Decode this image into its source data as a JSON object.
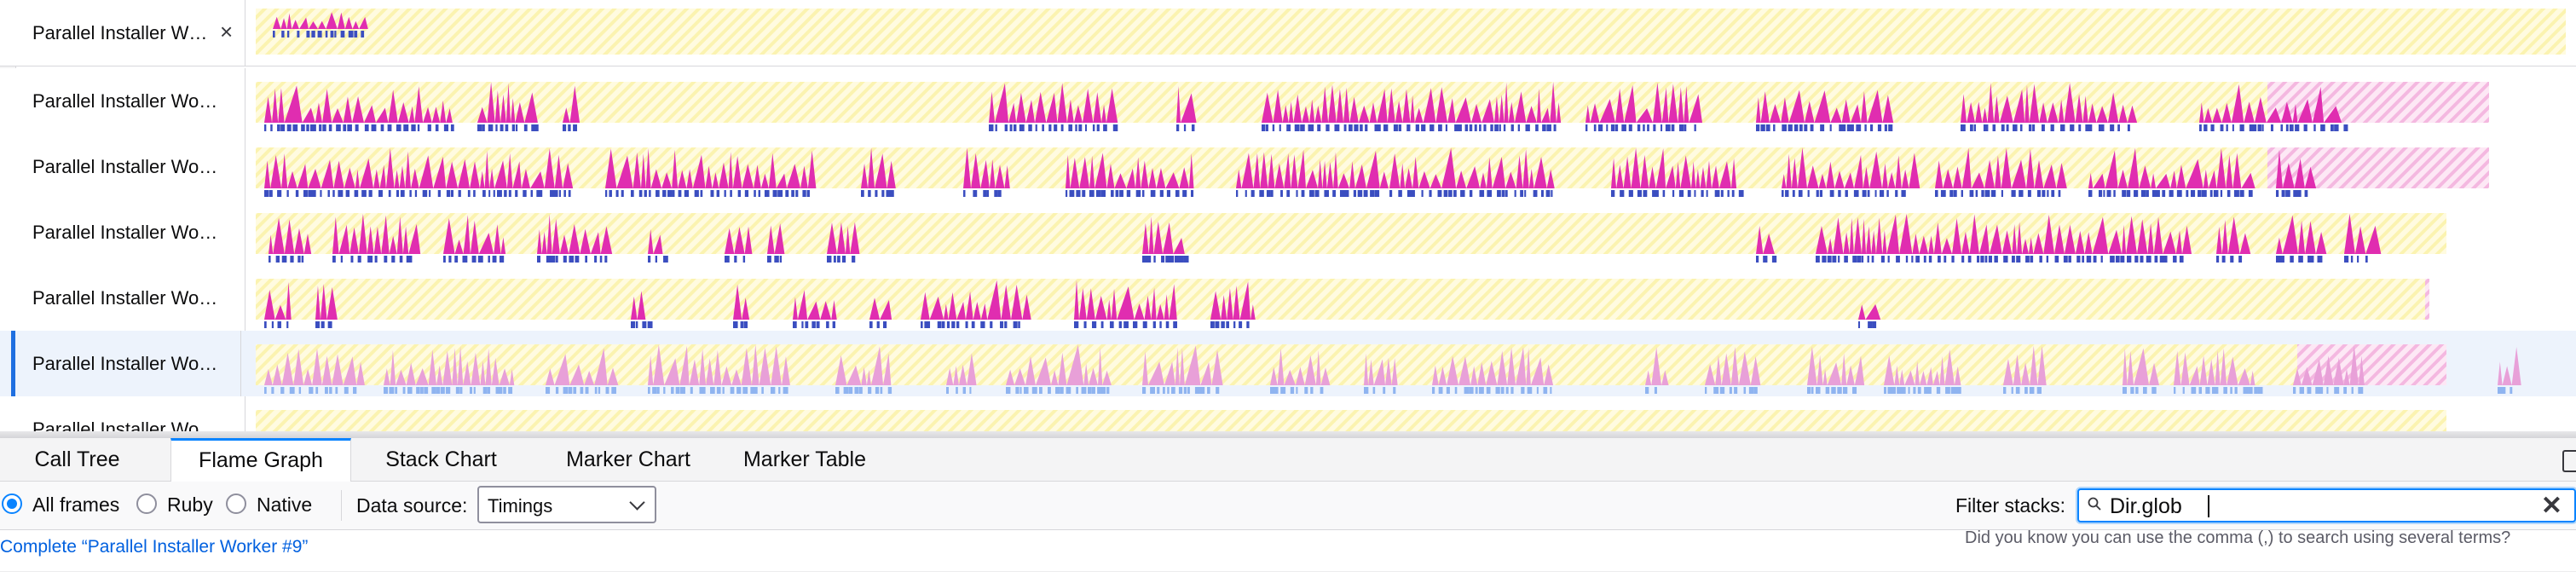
{
  "tracks": [
    {
      "label": "Parallel Installer W…",
      "close_icon": "×",
      "selected": false
    },
    {
      "label": "Parallel Installer Wo…",
      "selected": false
    },
    {
      "label": "Parallel Installer Wo…",
      "selected": false
    },
    {
      "label": "Parallel Installer Wo…",
      "selected": false
    },
    {
      "label": "Parallel Installer Wo…",
      "selected": false
    },
    {
      "label": "Parallel Installer Wo…",
      "selected": true
    },
    {
      "label": "Parallel Installer Wo…",
      "selected": false
    }
  ],
  "tabs": [
    {
      "label": "Call Tree",
      "active": false
    },
    {
      "label": "Flame Graph",
      "active": true
    },
    {
      "label": "Stack Chart",
      "active": false
    },
    {
      "label": "Marker Chart",
      "active": false
    },
    {
      "label": "Marker Table",
      "active": false
    }
  ],
  "settings": {
    "radios": [
      {
        "label": "All frames",
        "checked": true
      },
      {
        "label": "Ruby",
        "checked": false
      },
      {
        "label": "Native",
        "checked": false
      }
    ],
    "data_source_label": "Data source:",
    "data_source_value": "Timings",
    "filter_label": "Filter stacks:",
    "filter_value": "Dir.glob",
    "filter_clear_icon": "✕"
  },
  "tip": "Did you know you can use the comma (,) to search using several terms?",
  "breadcrumb": "Complete “Parallel Installer Worker #9”",
  "colors": {
    "cpu_fill": "#e02db0",
    "cpu_fill_dim": "#e8a0d8",
    "sample_marker": "#3b4ec0",
    "idle_stripe": "#fbf3b0",
    "idle_pink_stripe": "#f4b8e0",
    "accent": "#0a84ff"
  },
  "icons": {
    "close": "close-icon",
    "search": "search-icon",
    "chevron": "chevron-down-icon",
    "sidebar": "sidebar-toggle-icon"
  }
}
